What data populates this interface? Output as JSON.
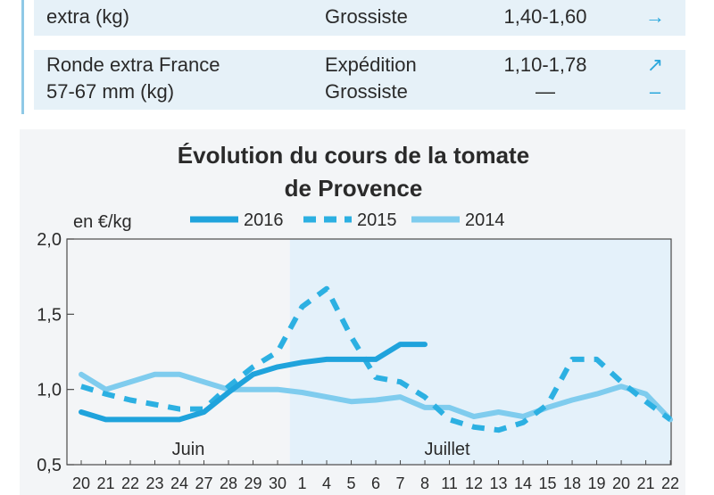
{
  "table": {
    "row1": {
      "product": "extra (kg)",
      "stage": "Grossiste",
      "price": "1,40-1,60",
      "trend": "→",
      "trend_icon": "arrow-right-icon"
    },
    "row2": {
      "product_line1": "Ronde extra France",
      "product_line2": "57-67 mm (kg)",
      "stage_line1": "Expédition",
      "stage_line2": "Grossiste",
      "price_line1": "1,10-1,78",
      "price_line2": "—",
      "trend_line1": "↗",
      "trend_line1_icon": "arrow-up-right-icon",
      "trend_line2": "–"
    }
  },
  "colors": {
    "accent": "#1fa3dc",
    "row_bg": "#e6f1f8",
    "panel_bg": "#f3f5f7",
    "july_band": "#e4f1fa"
  },
  "chart_data": {
    "type": "line",
    "title_line1": "Évolution du cours de la tomate",
    "title_line2": "de Provence",
    "ylabel": "en €/kg",
    "ylim": [
      0.5,
      2.0
    ],
    "y_ticks": [
      "2,0",
      "1,5",
      "1,0",
      "0,5"
    ],
    "y_tick_values": [
      2.0,
      1.5,
      1.0,
      0.5
    ],
    "x": [
      "20",
      "21",
      "22",
      "23",
      "24",
      "27",
      "28",
      "29",
      "30",
      "1",
      "4",
      "5",
      "6",
      "7",
      "8",
      "11",
      "12",
      "13",
      "14",
      "15",
      "18",
      "19",
      "20",
      "21",
      "22"
    ],
    "months": [
      {
        "label": "Juin",
        "start": 0,
        "end": 8
      },
      {
        "label": "Juillet",
        "start": 9,
        "end": 24
      }
    ],
    "legend_placement": "top",
    "series": [
      {
        "name": "2016",
        "color": "#1fa3dc",
        "style": "solid",
        "values": [
          0.85,
          0.8,
          0.8,
          0.8,
          0.8,
          0.85,
          0.98,
          1.1,
          1.15,
          1.18,
          1.2,
          1.2,
          1.2,
          1.3,
          1.3,
          null,
          null,
          null,
          null,
          null,
          null,
          null,
          null,
          null,
          null
        ]
      },
      {
        "name": "2015",
        "color": "#2cb0e2",
        "style": "dashed",
        "values": [
          1.02,
          0.97,
          0.93,
          0.9,
          0.87,
          0.87,
          1.02,
          1.15,
          1.25,
          1.55,
          1.67,
          1.35,
          1.08,
          1.05,
          0.95,
          0.8,
          0.75,
          0.73,
          0.78,
          0.9,
          1.2,
          1.2,
          1.05,
          0.92,
          0.8
        ]
      },
      {
        "name": "2014",
        "color": "#7fccee",
        "style": "solid",
        "values": [
          1.1,
          1.0,
          1.05,
          1.1,
          1.1,
          1.05,
          1.0,
          1.0,
          1.0,
          0.98,
          0.95,
          0.92,
          0.93,
          0.95,
          0.88,
          0.88,
          0.82,
          0.85,
          0.82,
          0.88,
          0.93,
          0.97,
          1.02,
          0.97,
          0.8
        ]
      }
    ]
  }
}
